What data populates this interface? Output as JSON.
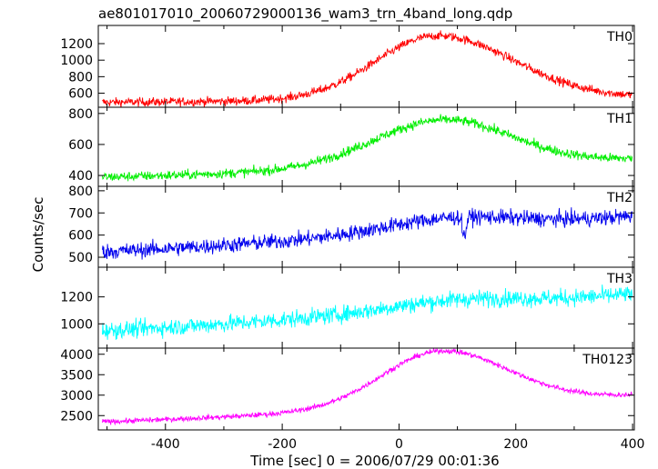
{
  "chart_data": {
    "type": "line",
    "title": "ae801017010_20060729000136_wam3_trn_4band_long.qdp",
    "xlabel": "Time [sec] 0 = 2006/07/29 00:01:36",
    "ylabel": "Counts/sec",
    "xlim": [
      -515,
      403
    ],
    "x_ticks": [
      -400,
      -200,
      0,
      200,
      400
    ],
    "grid": false,
    "panels": [
      {
        "name": "TH0",
        "color": "#ff0000",
        "ylim": [
          430,
          1420
        ],
        "y_ticks": [
          600,
          800,
          1000,
          1200
        ],
        "baseline_start": 490,
        "baseline_end": 550,
        "peak": {
          "x": 65,
          "amplitude": 770
        },
        "noise": 38,
        "width_left": 105,
        "width_right": 130,
        "dips": []
      },
      {
        "name": "TH1",
        "color": "#00ee00",
        "ylim": [
          330,
          840
        ],
        "y_ticks": [
          400,
          600,
          800
        ],
        "baseline_start": 390,
        "baseline_end": 505,
        "peak": {
          "x": 75,
          "amplitude": 300
        },
        "noise": 22,
        "width_left": 120,
        "width_right": 115,
        "dips": []
      },
      {
        "name": "TH2",
        "color": "#0000ee",
        "ylim": [
          455,
          820
        ],
        "y_ticks": [
          500,
          600,
          700,
          800
        ],
        "baseline_start": 525,
        "baseline_end": 685,
        "peak": {
          "x": 85,
          "amplitude": 55
        },
        "noise": 25,
        "width_left": 110,
        "width_right": 110,
        "dips": [
          {
            "x": 112,
            "depth": 90
          }
        ]
      },
      {
        "name": "TH3",
        "color": "#00ffff",
        "ylim": [
          820,
          1420
        ],
        "y_ticks": [
          1000,
          1200
        ],
        "baseline_start": 950,
        "baseline_end": 1220,
        "peak": {
          "x": 90,
          "amplitude": 60
        },
        "noise": 45,
        "width_left": 110,
        "width_right": 110,
        "dips": []
      },
      {
        "name": "TH0123",
        "color": "#ff00ff",
        "ylim": [
          2150,
          4150
        ],
        "y_ticks": [
          2500,
          3000,
          3500,
          4000
        ],
        "baseline_start": 2350,
        "baseline_end": 2990,
        "peak": {
          "x": 70,
          "amplitude": 1350
        },
        "noise": 45,
        "width_left": 100,
        "width_right": 115,
        "dips": []
      }
    ]
  }
}
